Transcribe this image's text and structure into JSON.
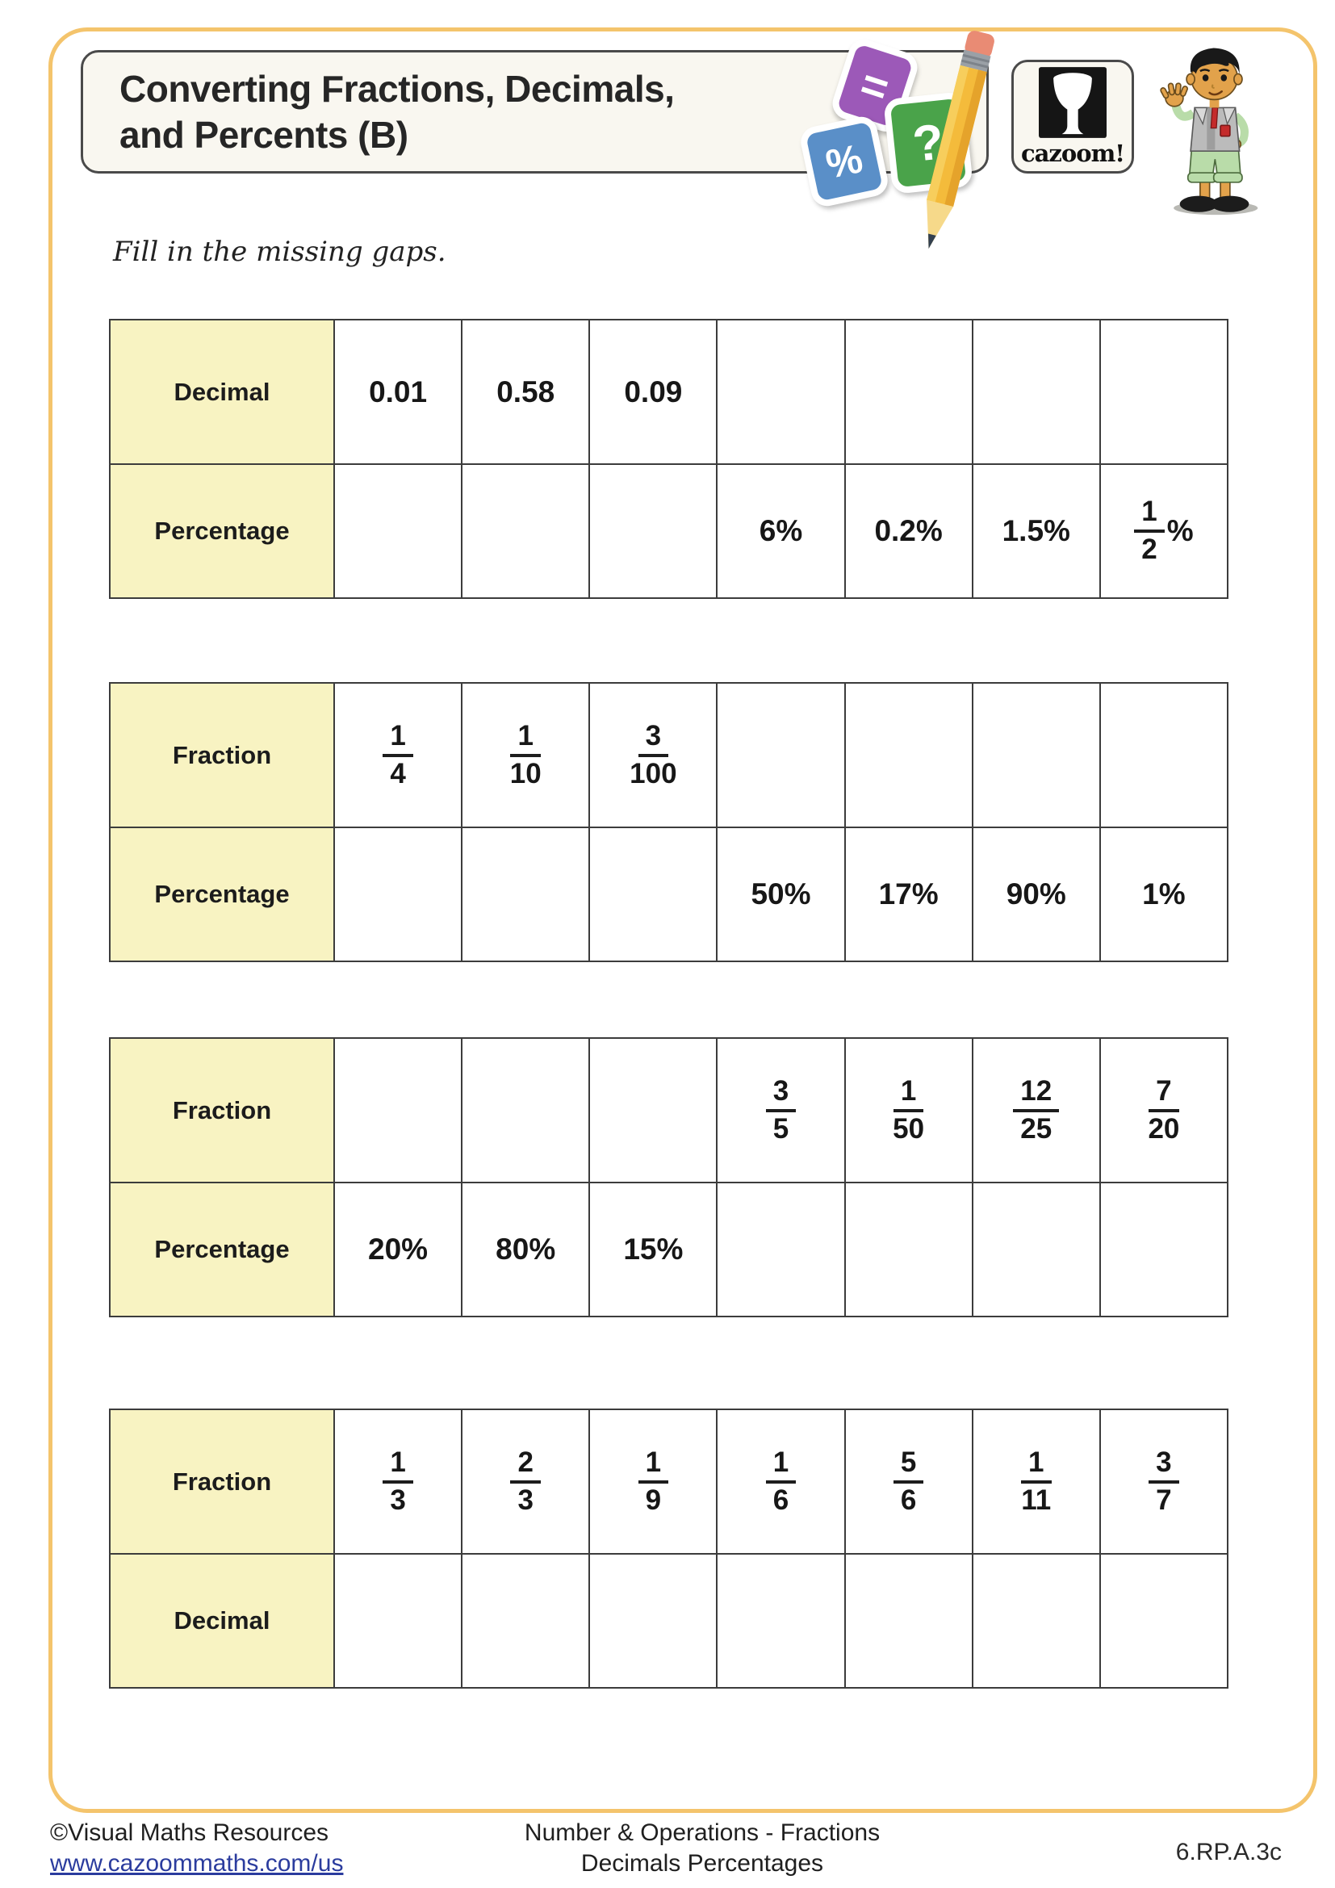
{
  "header": {
    "title_line1": "Converting Fractions, Decimals,",
    "title_line2": "and Percents (B)",
    "logo_text": "cazoom!",
    "icon_cards": {
      "equals": "=",
      "percent": "%",
      "question": "?"
    }
  },
  "instruction": "Fill in the missing gaps.",
  "tables": [
    {
      "name": "decimal-percentage-table-1",
      "rows": [
        {
          "label": "Decimal",
          "cells": [
            {
              "kind": "text",
              "text": "0.01"
            },
            {
              "kind": "text",
              "text": "0.58"
            },
            {
              "kind": "text",
              "text": "0.09"
            },
            {
              "kind": "empty"
            },
            {
              "kind": "empty"
            },
            {
              "kind": "empty"
            },
            {
              "kind": "empty"
            }
          ]
        },
        {
          "label": "Percentage",
          "cells": [
            {
              "kind": "empty"
            },
            {
              "kind": "empty"
            },
            {
              "kind": "empty"
            },
            {
              "kind": "text",
              "text": "6%"
            },
            {
              "kind": "text",
              "text": "0.2%"
            },
            {
              "kind": "text",
              "text": "1.5%"
            },
            {
              "kind": "fraction",
              "num": "1",
              "den": "2",
              "suffix": "%"
            }
          ]
        }
      ]
    },
    {
      "name": "fraction-percentage-table-1",
      "rows": [
        {
          "label": "Fraction",
          "cells": [
            {
              "kind": "fraction",
              "num": "1",
              "den": "4"
            },
            {
              "kind": "fraction",
              "num": "1",
              "den": "10"
            },
            {
              "kind": "fraction",
              "num": "3",
              "den": "100"
            },
            {
              "kind": "empty"
            },
            {
              "kind": "empty"
            },
            {
              "kind": "empty"
            },
            {
              "kind": "empty"
            }
          ]
        },
        {
          "label": "Percentage",
          "cells": [
            {
              "kind": "empty"
            },
            {
              "kind": "empty"
            },
            {
              "kind": "empty"
            },
            {
              "kind": "text",
              "text": "50%"
            },
            {
              "kind": "text",
              "text": "17%"
            },
            {
              "kind": "text",
              "text": "90%"
            },
            {
              "kind": "text",
              "text": "1%"
            }
          ]
        }
      ]
    },
    {
      "name": "fraction-percentage-table-2",
      "rows": [
        {
          "label": "Fraction",
          "cells": [
            {
              "kind": "empty"
            },
            {
              "kind": "empty"
            },
            {
              "kind": "empty"
            },
            {
              "kind": "fraction",
              "num": "3",
              "den": "5"
            },
            {
              "kind": "fraction",
              "num": "1",
              "den": "50"
            },
            {
              "kind": "fraction",
              "num": "12",
              "den": "25"
            },
            {
              "kind": "fraction",
              "num": "7",
              "den": "20"
            }
          ]
        },
        {
          "label": "Percentage",
          "cells": [
            {
              "kind": "text",
              "text": "20%"
            },
            {
              "kind": "text",
              "text": "80%"
            },
            {
              "kind": "text",
              "text": "15%"
            },
            {
              "kind": "empty"
            },
            {
              "kind": "empty"
            },
            {
              "kind": "empty"
            },
            {
              "kind": "empty"
            }
          ]
        }
      ]
    },
    {
      "name": "fraction-decimal-table",
      "rows": [
        {
          "label": "Fraction",
          "cells": [
            {
              "kind": "fraction",
              "num": "1",
              "den": "3"
            },
            {
              "kind": "fraction",
              "num": "2",
              "den": "3"
            },
            {
              "kind": "fraction",
              "num": "1",
              "den": "9"
            },
            {
              "kind": "fraction",
              "num": "1",
              "den": "6"
            },
            {
              "kind": "fraction",
              "num": "5",
              "den": "6"
            },
            {
              "kind": "fraction",
              "num": "1",
              "den": "11"
            },
            {
              "kind": "fraction",
              "num": "3",
              "den": "7"
            }
          ]
        },
        {
          "label": "Decimal",
          "cells": [
            {
              "kind": "empty"
            },
            {
              "kind": "empty"
            },
            {
              "kind": "empty"
            },
            {
              "kind": "empty"
            },
            {
              "kind": "empty"
            },
            {
              "kind": "empty"
            },
            {
              "kind": "empty"
            }
          ]
        }
      ]
    }
  ],
  "footer": {
    "copyright": "©Visual Maths Resources",
    "link": "www.cazoommaths.com/us",
    "center_line1": "Number & Operations - Fractions",
    "center_line2": "Decimals Percentages",
    "standard_code": "6.RP.A.3c"
  },
  "colors": {
    "page_border": "#F4C46C",
    "panel_bg": "#F9F7F0",
    "panel_border": "#4A4A4A",
    "label_cell_bg": "#F8F3C2",
    "table_line": "#3C3C3C",
    "link": "#2B3C9E",
    "card_purple": "#9C59B8",
    "card_blue": "#5A8FC8",
    "card_green": "#4AA34A"
  }
}
